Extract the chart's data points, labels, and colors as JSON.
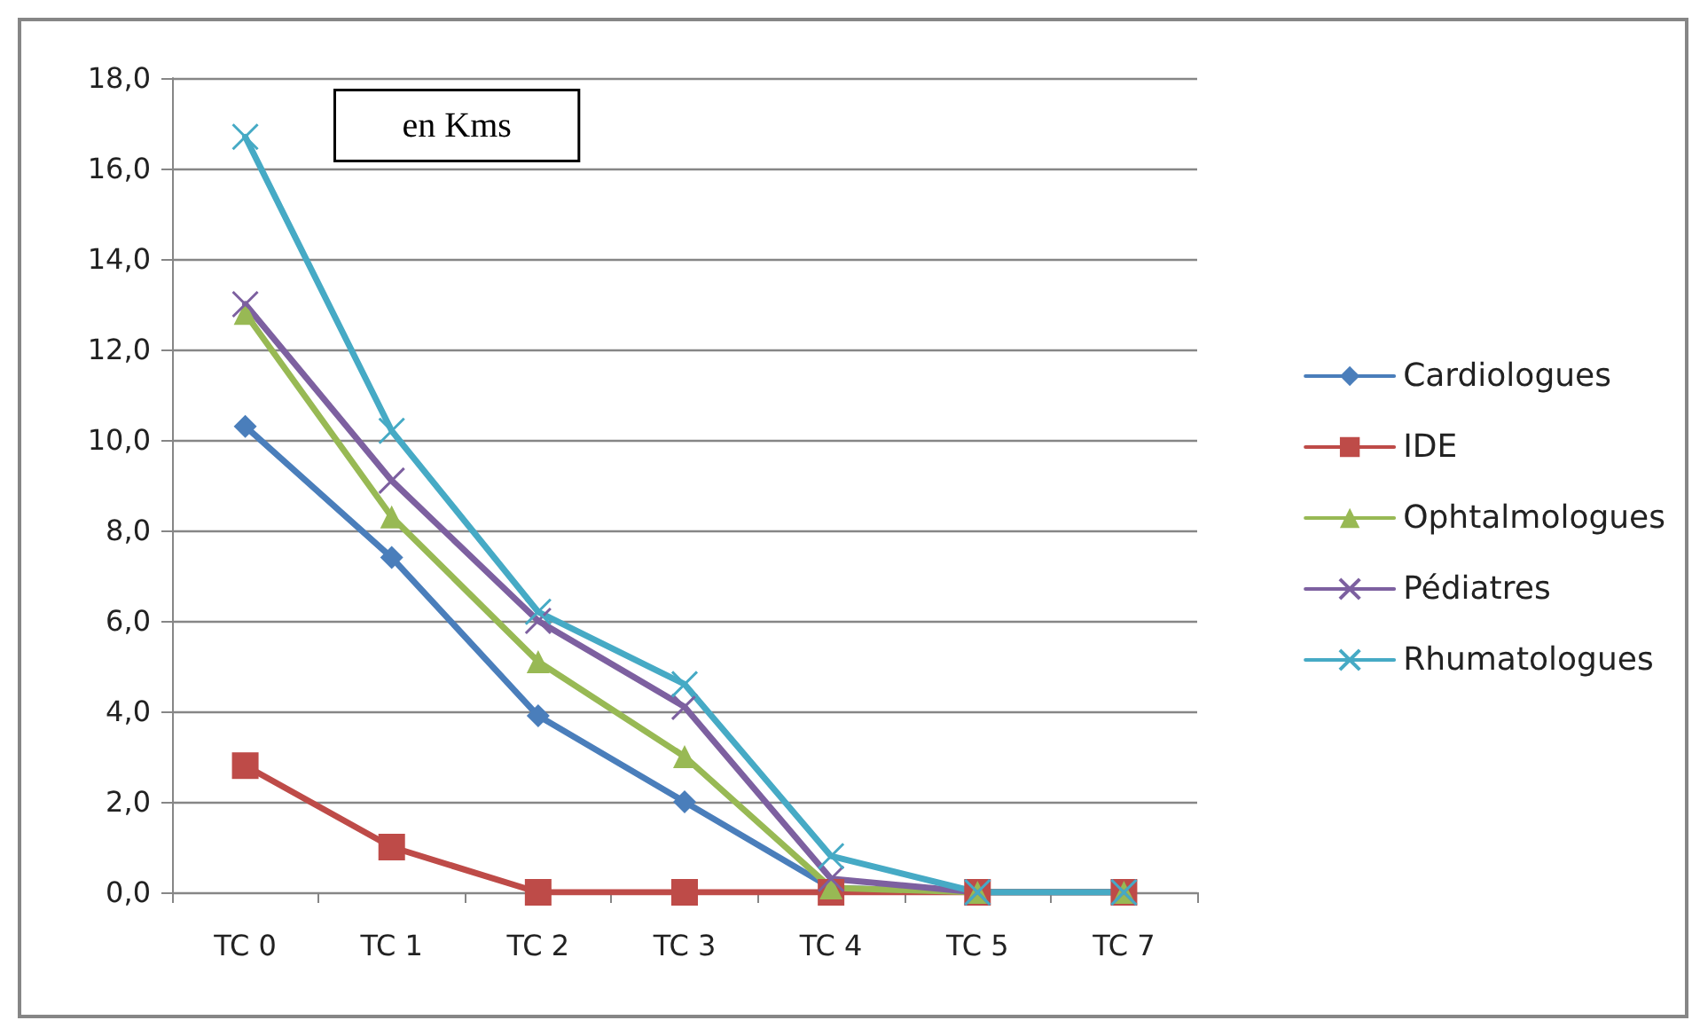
{
  "chart_data": {
    "type": "line",
    "categories": [
      "TC 0",
      "TC 1",
      "TC 2",
      "TC 3",
      "TC 4",
      "TC 5",
      "TC 7"
    ],
    "series": [
      {
        "name": "Cardiologues",
        "color": "#4a7ebb",
        "marker": "diamond",
        "values": [
          10.3,
          7.4,
          3.9,
          2.0,
          0.1,
          0,
          0
        ]
      },
      {
        "name": "IDE",
        "color": "#be4b48",
        "marker": "square",
        "values": [
          2.8,
          1.0,
          0,
          0,
          0,
          0,
          0
        ]
      },
      {
        "name": "Ophtalmologues",
        "color": "#98b954",
        "marker": "triangle",
        "values": [
          12.8,
          8.3,
          5.1,
          3.0,
          0.1,
          0,
          0
        ]
      },
      {
        "name": "Pédiatres",
        "color": "#7d60a0",
        "marker": "cross",
        "values": [
          13.0,
          9.1,
          6.0,
          4.1,
          0.3,
          0,
          0
        ]
      },
      {
        "name": "Rhumatologues",
        "color": "#46aac5",
        "marker": "cross",
        "values": [
          16.7,
          10.2,
          6.2,
          4.6,
          0.8,
          0,
          0
        ]
      }
    ],
    "ylim": [
      0,
      18
    ],
    "yticks": [
      {
        "value": 0,
        "label": "0,0"
      },
      {
        "value": 2,
        "label": "2,0"
      },
      {
        "value": 4,
        "label": "4,0"
      },
      {
        "value": 6,
        "label": "6,0"
      },
      {
        "value": 8,
        "label": "8,0"
      },
      {
        "value": 10,
        "label": "10,0"
      },
      {
        "value": 12,
        "label": "12,0"
      },
      {
        "value": 14,
        "label": "14,0"
      },
      {
        "value": 16,
        "label": "16,0"
      },
      {
        "value": 18,
        "label": "18,0"
      }
    ],
    "grid": "y",
    "legend": "right",
    "line_style": "solid",
    "annotations": [
      "en Kms"
    ]
  }
}
